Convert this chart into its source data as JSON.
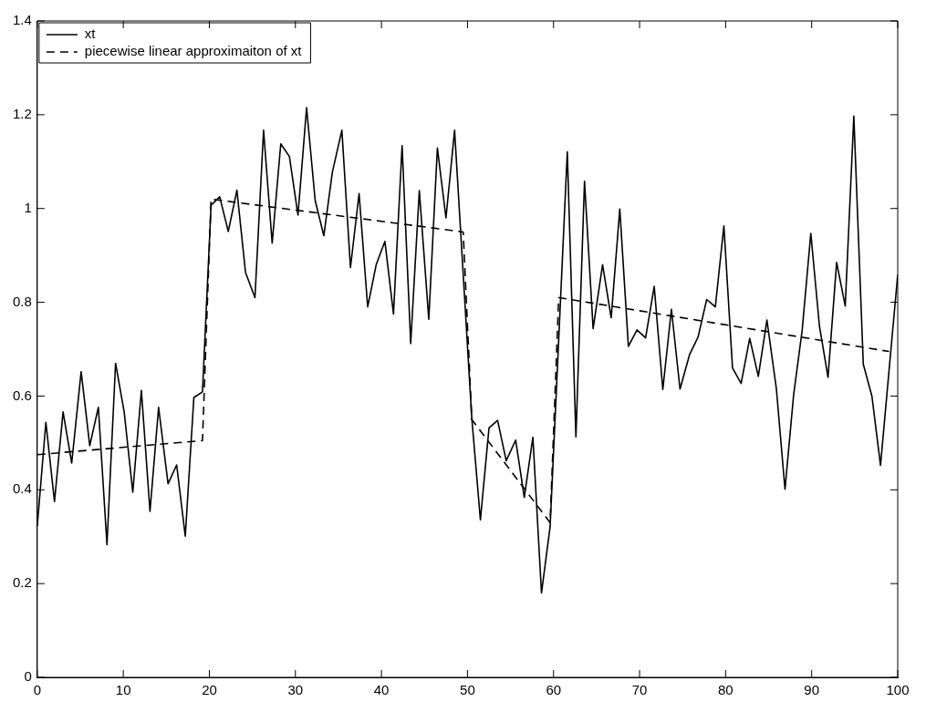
{
  "chart_data": {
    "type": "line",
    "xlim": [
      0,
      100
    ],
    "xticks": [
      0,
      10,
      20,
      30,
      40,
      50,
      60,
      70,
      80,
      90,
      100
    ],
    "ylim": [
      0,
      1.4
    ],
    "yticks": [
      0,
      0.2,
      0.4,
      0.6,
      0.8,
      1,
      1.2,
      1.4
    ],
    "grid": false,
    "legend": "top left",
    "marker": "none",
    "series": [
      {
        "name": "xt",
        "color": "#000000",
        "line_style": "solid",
        "x": [
          0,
          1.0,
          2.0,
          3.0,
          4.0,
          5.1,
          6.1,
          7.1,
          8.1,
          9.1,
          10.1,
          11.1,
          12.1,
          13.1,
          14.1,
          15.2,
          16.2,
          17.2,
          18.2,
          19.2,
          20.2,
          21.2,
          22.2,
          23.2,
          24.2,
          25.3,
          26.3,
          27.3,
          28.3,
          29.3,
          30.3,
          31.3,
          32.3,
          33.3,
          34.3,
          35.4,
          36.4,
          37.4,
          38.4,
          39.4,
          40.4,
          41.4,
          42.4,
          43.4,
          44.4,
          45.5,
          46.5,
          47.5,
          48.5,
          49.5,
          50.5,
          51.5,
          52.5,
          53.5,
          54.5,
          55.6,
          56.6,
          57.6,
          58.6,
          59.6,
          60.6,
          61.6,
          62.6,
          63.6,
          64.6,
          65.7,
          66.7,
          67.7,
          68.7,
          69.7,
          70.7,
          71.7,
          72.7,
          73.7,
          74.7,
          75.8,
          76.8,
          77.8,
          78.8,
          79.8,
          80.8,
          81.8,
          82.8,
          83.8,
          84.8,
          85.9,
          86.9,
          87.9,
          88.9,
          89.9,
          90.9,
          91.9,
          92.9,
          93.9,
          94.9,
          96.0,
          97.0,
          98.0,
          99.0,
          100.0
        ],
        "values": [
          0.323,
          0.544,
          0.375,
          0.566,
          0.457,
          0.652,
          0.494,
          0.576,
          0.283,
          0.67,
          0.566,
          0.395,
          0.612,
          0.354,
          0.576,
          0.413,
          0.453,
          0.301,
          0.597,
          0.609,
          1.007,
          1.025,
          0.951,
          1.039,
          0.864,
          0.81,
          1.167,
          0.926,
          1.138,
          1.111,
          0.986,
          1.215,
          1.017,
          0.942,
          1.078,
          1.167,
          0.874,
          1.032,
          0.79,
          0.881,
          0.93,
          0.775,
          1.134,
          0.712,
          1.038,
          0.764,
          1.129,
          0.98,
          1.167,
          0.86,
          0.553,
          0.336,
          0.532,
          0.548,
          0.462,
          0.506,
          0.384,
          0.512,
          0.18,
          0.321,
          0.72,
          1.121,
          0.513,
          1.058,
          0.744,
          0.88,
          0.767,
          0.999,
          0.706,
          0.741,
          0.724,
          0.834,
          0.614,
          0.785,
          0.615,
          0.688,
          0.726,
          0.806,
          0.79,
          0.963,
          0.66,
          0.627,
          0.723,
          0.642,
          0.762,
          0.615,
          0.401,
          0.602,
          0.741,
          0.947,
          0.75,
          0.64,
          0.885,
          0.792,
          1.197,
          0.668,
          0.6,
          0.452,
          0.656,
          0.859
        ]
      },
      {
        "name": "piecewise linear approximaiton of xt",
        "color": "#000000",
        "line_style": "dashed",
        "x": [
          0,
          19.2,
          20.2,
          49.5,
          50.5,
          59.6,
          60.6,
          99.0
        ],
        "values": [
          0.475,
          0.505,
          1.02,
          0.95,
          0.55,
          0.33,
          0.81,
          0.695
        ]
      }
    ]
  }
}
